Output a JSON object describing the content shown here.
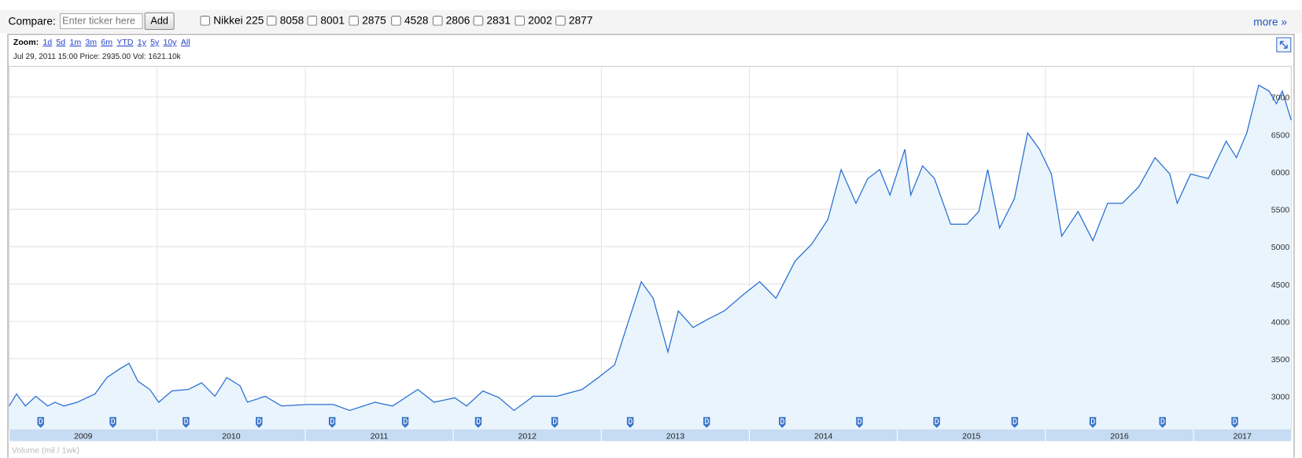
{
  "toolbar": {
    "compare_label": "Compare:",
    "input_placeholder": "Enter ticker here",
    "add_button": "Add",
    "tickers": [
      "Nikkei 225",
      "8058",
      "8001",
      "2875",
      "4528",
      "2806",
      "2831",
      "2002",
      "2877"
    ],
    "more": "more »"
  },
  "zoom": {
    "label": "Zoom:",
    "options": [
      "1d",
      "5d",
      "1m",
      "3m",
      "6m",
      "YTD",
      "1y",
      "5y",
      "10y",
      "All"
    ]
  },
  "info": "Jul 29, 2011 15:00 Price: 2935.00 Vol: 1621.10k",
  "volume_label": "Volume (mil / 1wk)",
  "chart_data": {
    "type": "line",
    "x": [
      2009.0,
      2009.05,
      2009.11,
      2009.18,
      2009.26,
      2009.31,
      2009.37,
      2009.46,
      2009.58,
      2009.66,
      2009.75,
      2009.81,
      2009.87,
      2009.95,
      2010.01,
      2010.1,
      2010.21,
      2010.3,
      2010.39,
      2010.47,
      2010.56,
      2010.61,
      2010.73,
      2010.84,
      2011.02,
      2011.19,
      2011.3,
      2011.47,
      2011.59,
      2011.76,
      2011.87,
      2012.01,
      2012.09,
      2012.2,
      2012.31,
      2012.41,
      2012.54,
      2012.7,
      2012.87,
      2012.98,
      2013.09,
      2013.16,
      2013.27,
      2013.35,
      2013.45,
      2013.52,
      2013.62,
      2013.72,
      2013.83,
      2013.96,
      2014.07,
      2014.18,
      2014.31,
      2014.42,
      2014.53,
      2014.62,
      2014.72,
      2014.8,
      2014.88,
      2014.95,
      2015.05,
      2015.09,
      2015.17,
      2015.25,
      2015.36,
      2015.47,
      2015.55,
      2015.61,
      2015.69,
      2015.79,
      2015.88,
      2015.96,
      2016.04,
      2016.11,
      2016.22,
      2016.32,
      2016.42,
      2016.52,
      2016.63,
      2016.74,
      2016.84,
      2016.89,
      2016.98,
      2017.1,
      2017.22,
      2017.29,
      2017.36,
      2017.44,
      2017.51,
      2017.56,
      2017.6,
      2017.66
    ],
    "values": [
      2870,
      3030,
      2870,
      3000,
      2870,
      2920,
      2870,
      2920,
      3030,
      3250,
      3370,
      3440,
      3200,
      3090,
      2920,
      3070,
      3090,
      3180,
      3000,
      3250,
      3140,
      2920,
      3000,
      2870,
      2890,
      2890,
      2810,
      2920,
      2870,
      3090,
      2920,
      2980,
      2870,
      3070,
      2980,
      2810,
      3000,
      3000,
      3090,
      3250,
      3420,
      3860,
      4530,
      4310,
      3590,
      4140,
      3920,
      4030,
      4140,
      4360,
      4530,
      4310,
      4810,
      5030,
      5360,
      6030,
      5580,
      5910,
      6030,
      5690,
      6300,
      5690,
      6080,
      5910,
      5300,
      5300,
      5470,
      6030,
      5250,
      5640,
      6520,
      6300,
      5970,
      5140,
      5470,
      5080,
      5580,
      5580,
      5800,
      6190,
      5970,
      5580,
      5970,
      5910,
      6410,
      6190,
      6520,
      7160,
      7080,
      6910,
      7080,
      6690
    ],
    "color": "#2a6fd0",
    "fill": "#e9f4fd",
    "grid": true,
    "xlim": [
      2009,
      2017.66
    ],
    "xticks": [
      2009,
      2010,
      2011,
      2012,
      2013,
      2014,
      2015,
      2016,
      2017
    ],
    "ylim": [
      2555,
      7410
    ],
    "yticks": [
      3000,
      3500,
      4000,
      4500,
      5000,
      5500,
      6000,
      6500,
      7000
    ]
  }
}
